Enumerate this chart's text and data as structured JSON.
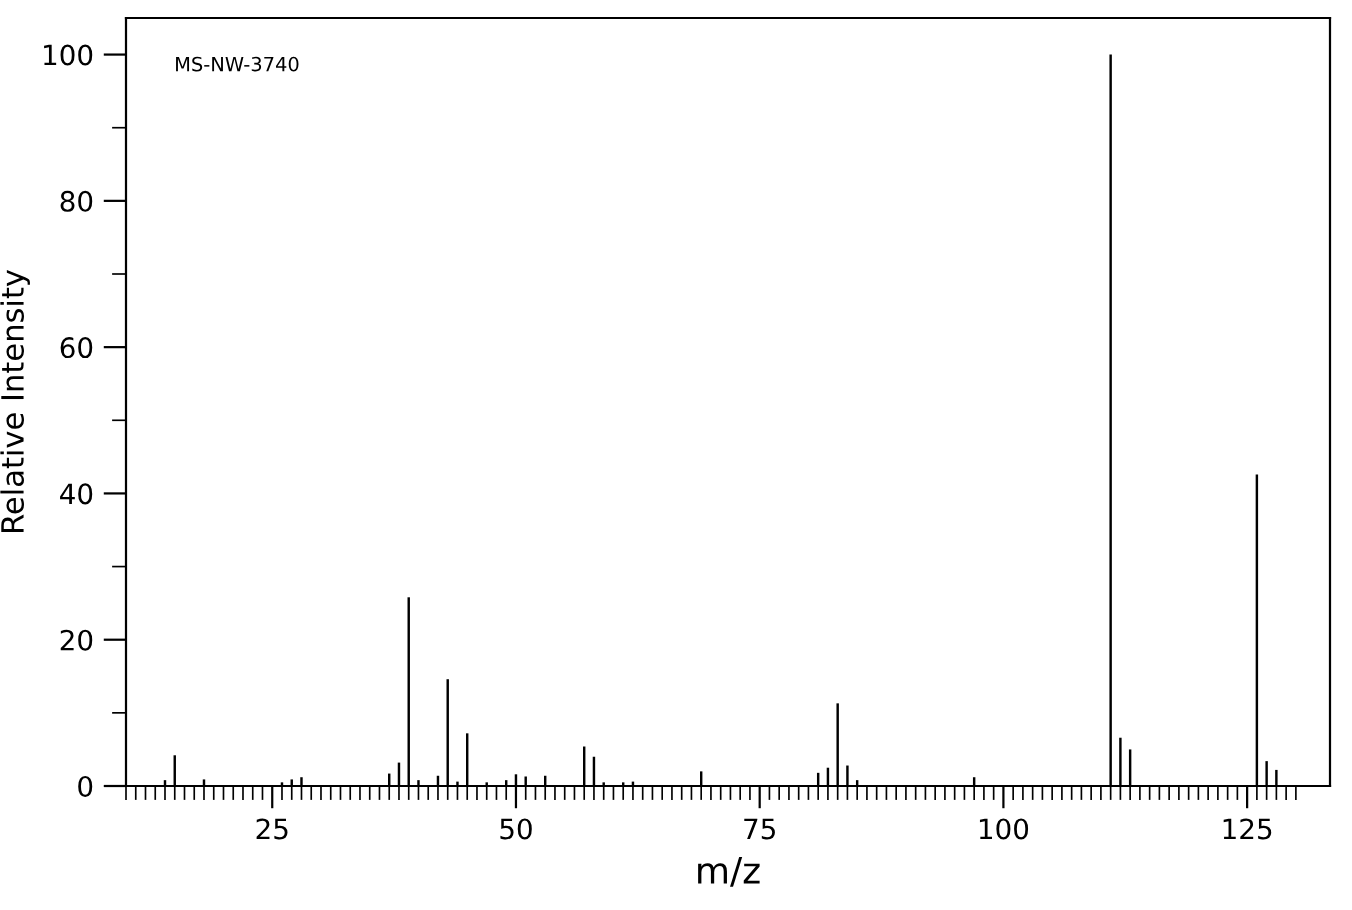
{
  "chart_data": {
    "type": "bar",
    "xlabel": "m/z",
    "ylabel": "Relative Intensity",
    "annotations": [
      "MS-NW-3740"
    ],
    "color": "#000000",
    "x": [
      14,
      15,
      18,
      26,
      27,
      28,
      37,
      38,
      39,
      40,
      42,
      43,
      44,
      45,
      47,
      49,
      50,
      51,
      53,
      57,
      58,
      59,
      61,
      62,
      69,
      81,
      82,
      83,
      84,
      85,
      97,
      111,
      112,
      113,
      126,
      127,
      128
    ],
    "values": [
      0.8,
      4.2,
      0.9,
      0.5,
      0.9,
      1.2,
      1.7,
      3.2,
      25.8,
      0.8,
      1.4,
      14.6,
      0.6,
      7.2,
      0.5,
      0.8,
      1.6,
      1.3,
      1.4,
      5.4,
      4.0,
      0.5,
      0.5,
      0.6,
      2.0,
      1.8,
      2.5,
      11.3,
      2.8,
      0.8,
      1.2,
      100,
      6.6,
      5.0,
      42.6,
      3.4,
      2.2
    ],
    "xlim": [
      10,
      133.5
    ],
    "ylim": [
      0,
      105
    ],
    "xticks": [
      {
        "value": 10,
        "label": null
      },
      {
        "value": 11,
        "label": null
      },
      {
        "value": 12,
        "label": null
      },
      {
        "value": 13,
        "label": null
      },
      {
        "value": 14,
        "label": null
      },
      {
        "value": 15,
        "label": null
      },
      {
        "value": 16,
        "label": null
      },
      {
        "value": 17,
        "label": null
      },
      {
        "value": 18,
        "label": null
      },
      {
        "value": 19,
        "label": null
      },
      {
        "value": 20,
        "label": null
      },
      {
        "value": 21,
        "label": null
      },
      {
        "value": 22,
        "label": null
      },
      {
        "value": 23,
        "label": null
      },
      {
        "value": 24,
        "label": null
      },
      25,
      {
        "value": 26,
        "label": null
      },
      {
        "value": 27,
        "label": null
      },
      {
        "value": 28,
        "label": null
      },
      {
        "value": 29,
        "label": null
      },
      {
        "value": 30,
        "label": null
      },
      {
        "value": 31,
        "label": null
      },
      {
        "value": 32,
        "label": null
      },
      {
        "value": 33,
        "label": null
      },
      {
        "value": 34,
        "label": null
      },
      {
        "value": 35,
        "label": null
      },
      {
        "value": 36,
        "label": null
      },
      {
        "value": 37,
        "label": null
      },
      {
        "value": 38,
        "label": null
      },
      {
        "value": 39,
        "label": null
      },
      {
        "value": 40,
        "label": null
      },
      {
        "value": 41,
        "label": null
      },
      {
        "value": 42,
        "label": null
      },
      {
        "value": 43,
        "label": null
      },
      {
        "value": 44,
        "label": null
      },
      {
        "value": 45,
        "label": null
      },
      {
        "value": 46,
        "label": null
      },
      {
        "value": 47,
        "label": null
      },
      {
        "value": 48,
        "label": null
      },
      {
        "value": 49,
        "label": null
      },
      50,
      {
        "value": 51,
        "label": null
      },
      {
        "value": 52,
        "label": null
      },
      {
        "value": 53,
        "label": null
      },
      {
        "value": 54,
        "label": null
      },
      {
        "value": 55,
        "label": null
      },
      {
        "value": 56,
        "label": null
      },
      {
        "value": 57,
        "label": null
      },
      {
        "value": 58,
        "label": null
      },
      {
        "value": 59,
        "label": null
      },
      {
        "value": 60,
        "label": null
      },
      {
        "value": 61,
        "label": null
      },
      {
        "value": 62,
        "label": null
      },
      {
        "value": 63,
        "label": null
      },
      {
        "value": 64,
        "label": null
      },
      {
        "value": 65,
        "label": null
      },
      {
        "value": 66,
        "label": null
      },
      {
        "value": 67,
        "label": null
      },
      {
        "value": 68,
        "label": null
      },
      {
        "value": 69,
        "label": null
      },
      {
        "value": 70,
        "label": null
      },
      {
        "value": 71,
        "label": null
      },
      {
        "value": 72,
        "label": null
      },
      {
        "value": 73,
        "label": null
      },
      {
        "value": 74,
        "label": null
      },
      75,
      {
        "value": 76,
        "label": null
      },
      {
        "value": 77,
        "label": null
      },
      {
        "value": 78,
        "label": null
      },
      {
        "value": 79,
        "label": null
      },
      {
        "value": 80,
        "label": null
      },
      {
        "value": 81,
        "label": null
      },
      {
        "value": 82,
        "label": null
      },
      {
        "value": 83,
        "label": null
      },
      {
        "value": 84,
        "label": null
      },
      {
        "value": 85,
        "label": null
      },
      {
        "value": 86,
        "label": null
      },
      {
        "value": 87,
        "label": null
      },
      {
        "value": 88,
        "label": null
      },
      {
        "value": 89,
        "label": null
      },
      {
        "value": 90,
        "label": null
      },
      {
        "value": 91,
        "label": null
      },
      {
        "value": 92,
        "label": null
      },
      {
        "value": 93,
        "label": null
      },
      {
        "value": 94,
        "label": null
      },
      {
        "value": 95,
        "label": null
      },
      {
        "value": 96,
        "label": null
      },
      {
        "value": 97,
        "label": null
      },
      {
        "value": 98,
        "label": null
      },
      {
        "value": 99,
        "label": null
      },
      100,
      {
        "value": 101,
        "label": null
      },
      {
        "value": 102,
        "label": null
      },
      {
        "value": 103,
        "label": null
      },
      {
        "value": 104,
        "label": null
      },
      {
        "value": 105,
        "label": null
      },
      {
        "value": 106,
        "label": null
      },
      {
        "value": 107,
        "label": null
      },
      {
        "value": 108,
        "label": null
      },
      {
        "value": 109,
        "label": null
      },
      {
        "value": 110,
        "label": null
      },
      {
        "value": 111,
        "label": null
      },
      {
        "value": 112,
        "label": null
      },
      {
        "value": 113,
        "label": null
      },
      {
        "value": 114,
        "label": null
      },
      {
        "value": 115,
        "label": null
      },
      {
        "value": 116,
        "label": null
      },
      {
        "value": 117,
        "label": null
      },
      {
        "value": 118,
        "label": null
      },
      {
        "value": 119,
        "label": null
      },
      {
        "value": 120,
        "label": null
      },
      {
        "value": 121,
        "label": null
      },
      {
        "value": 122,
        "label": null
      },
      {
        "value": 123,
        "label": null
      },
      {
        "value": 124,
        "label": null
      },
      125,
      {
        "value": 126,
        "label": null
      },
      {
        "value": 127,
        "label": null
      },
      {
        "value": 128,
        "label": null
      },
      {
        "value": 129,
        "label": null
      },
      {
        "value": 130,
        "label": null
      }
    ],
    "yticks": [
      0,
      {
        "value": 10,
        "label": null
      },
      20,
      {
        "value": 30,
        "label": null
      },
      40,
      {
        "value": 50,
        "label": null
      },
      60,
      {
        "value": 70,
        "label": null
      },
      80,
      {
        "value": 90,
        "label": null
      },
      100
    ],
    "grid": false,
    "legend": false
  }
}
